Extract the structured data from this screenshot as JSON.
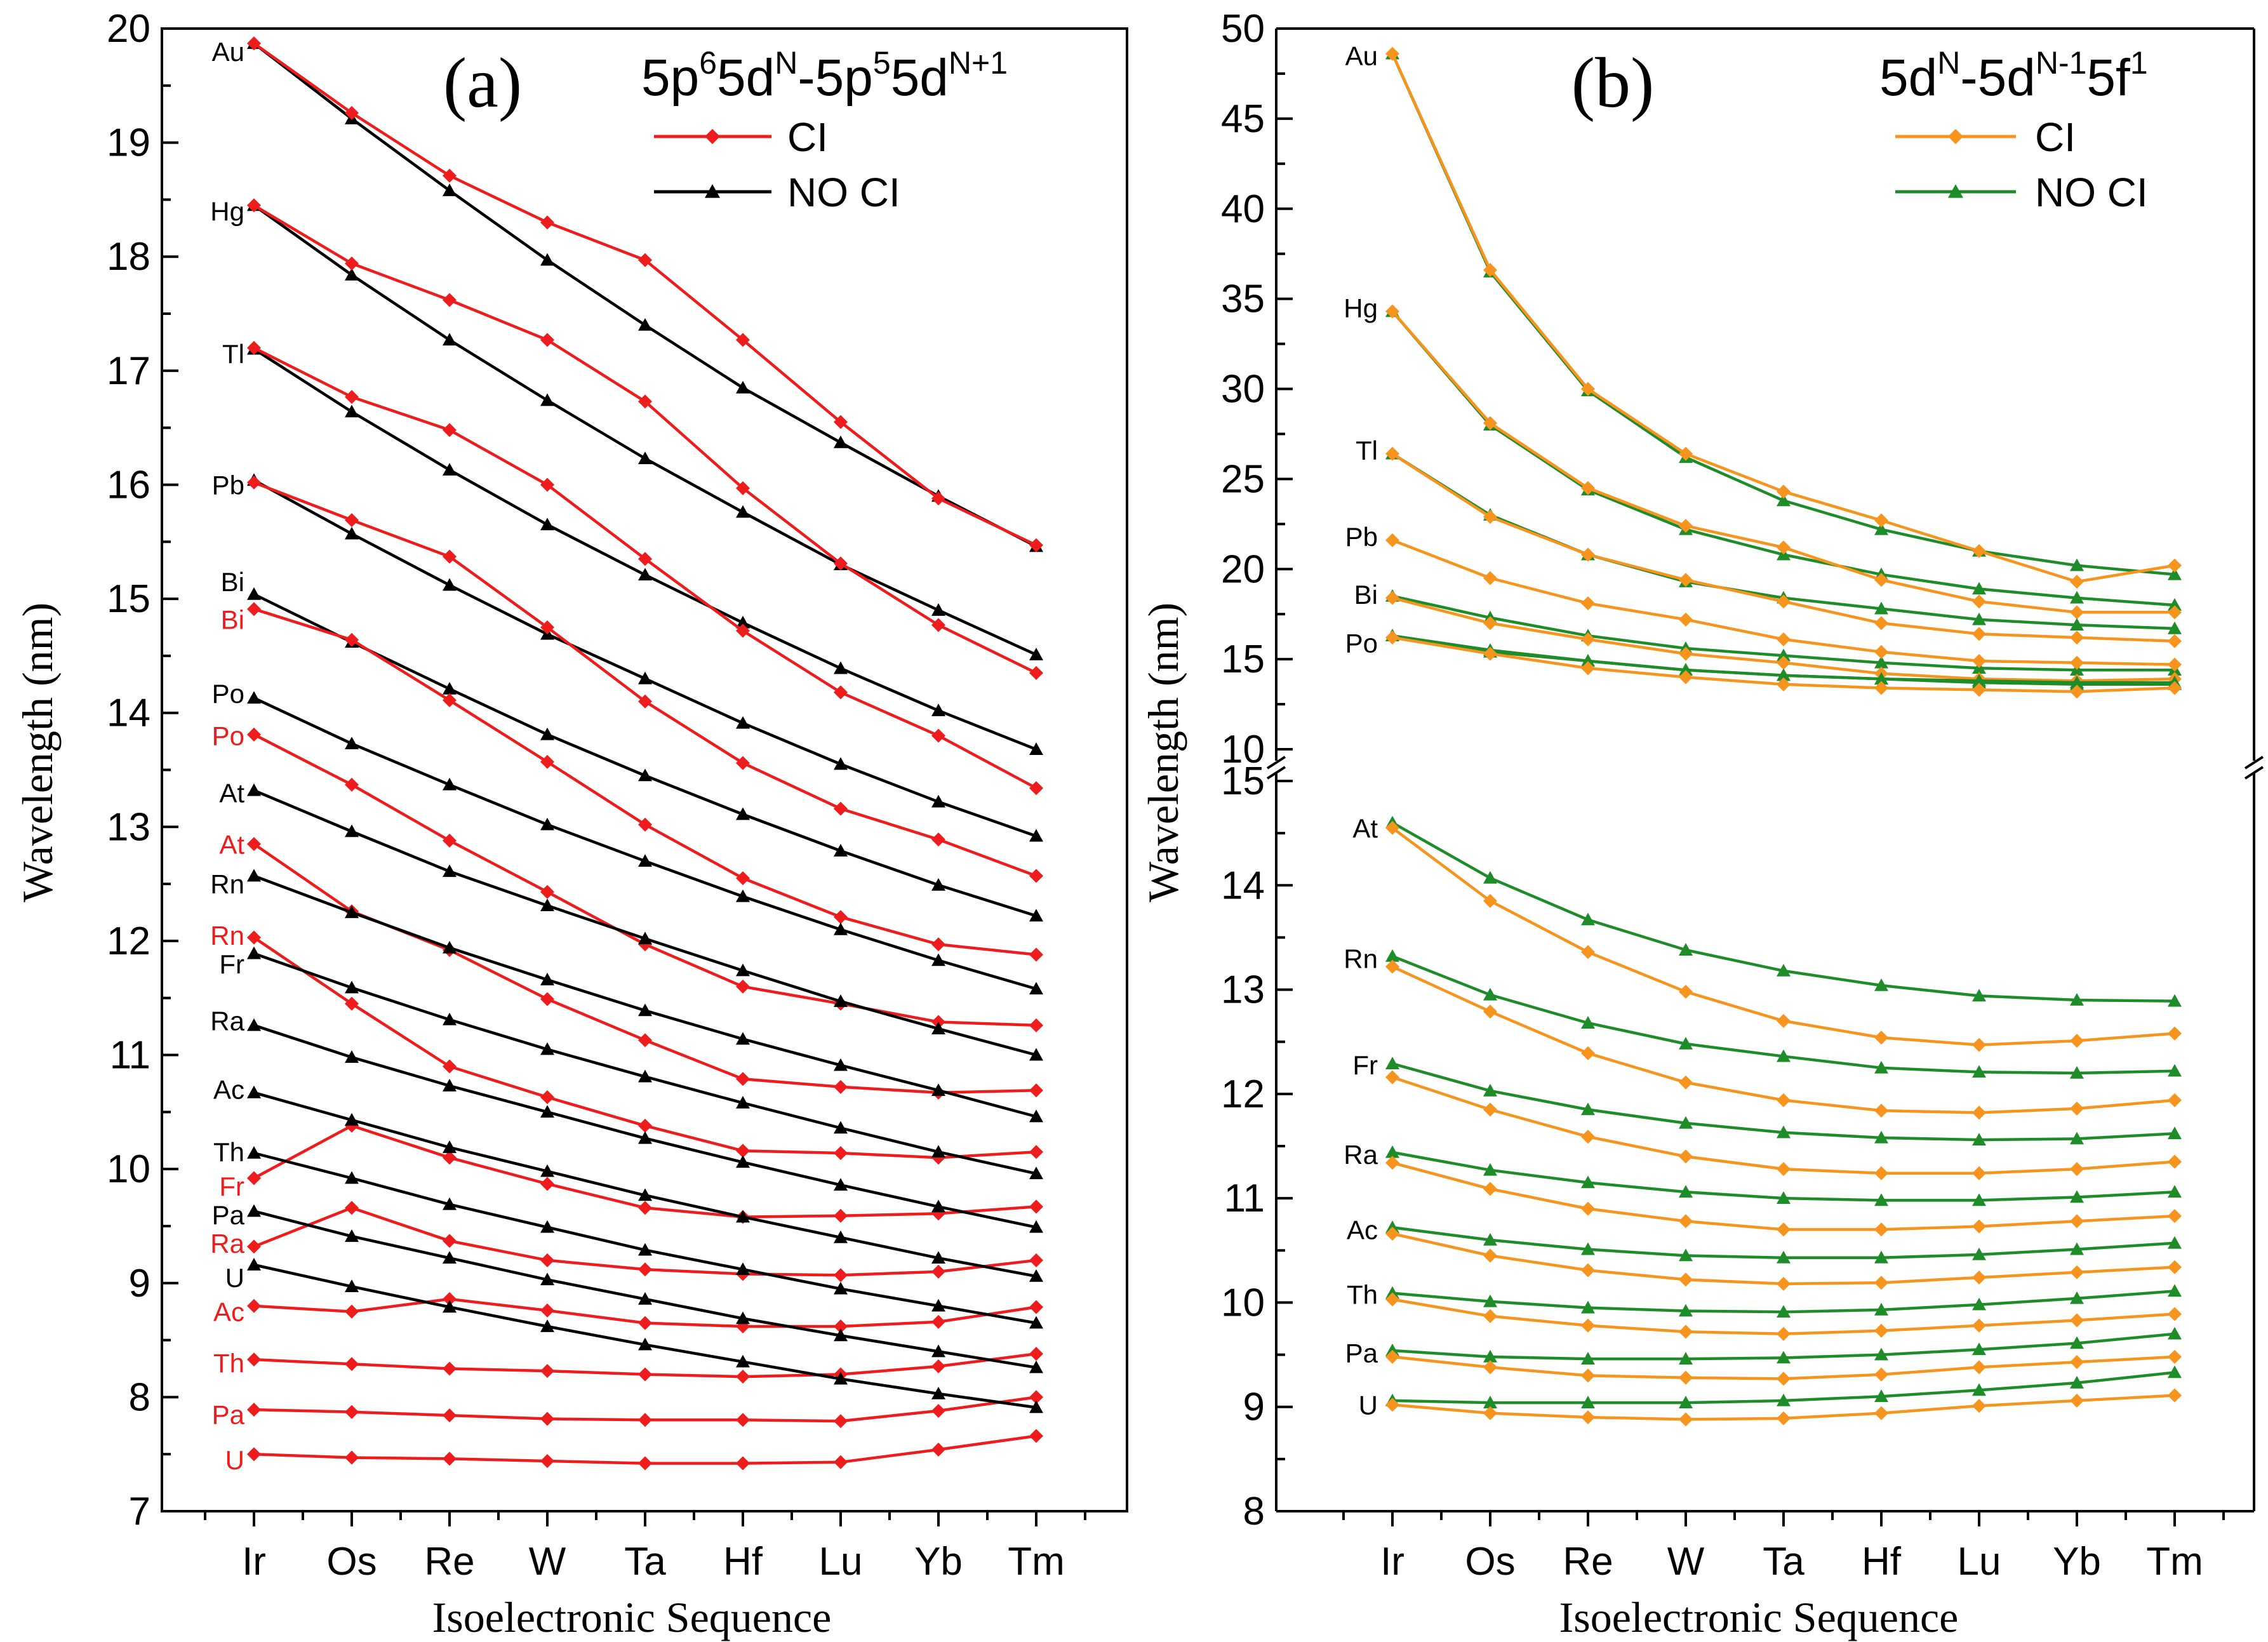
{
  "colors": {
    "ci_a": "#ee1c1c",
    "noci_a": "#000000",
    "ci_b": "#f7941d",
    "noci_b": "#1f8c2a",
    "label_red": "#ee1c1c",
    "label_black": "#000000"
  },
  "chart_data": [
    {
      "type": "line",
      "panel": "(a)",
      "transition_parts": [
        "5p",
        "6",
        "5d",
        "N",
        "-5p",
        "5",
        "5d",
        "N+1"
      ],
      "categories": [
        "Ir",
        "Os",
        "Re",
        "W",
        "Ta",
        "Hf",
        "Lu",
        "Yb",
        "Tm"
      ],
      "xlabel": "Isoelectronic Sequence",
      "ylabel": "Wavelength (nm)",
      "ylim": [
        7,
        20
      ],
      "yticks": [
        "7",
        "8",
        "9",
        "10",
        "11",
        "12",
        "13",
        "14",
        "15",
        "16",
        "17",
        "18",
        "19",
        "20"
      ],
      "legend": [
        "CI",
        "NO CI"
      ],
      "series": [
        {
          "element": "Au",
          "ci": [
            19.87,
            19.26,
            18.71,
            18.3,
            17.97,
            17.27,
            16.55,
            15.88,
            15.47
          ],
          "noci": [
            19.87,
            19.21,
            18.58,
            17.97,
            17.4,
            16.85,
            16.37,
            15.9,
            15.46
          ]
        },
        {
          "element": "Hg",
          "ci": [
            18.45,
            17.94,
            17.62,
            17.27,
            16.73,
            15.97,
            15.31,
            14.77,
            14.35
          ],
          "noci": [
            18.45,
            17.84,
            17.27,
            16.74,
            16.23,
            15.76,
            15.3,
            14.9,
            14.51
          ]
        },
        {
          "element": "Tl",
          "ci": [
            17.2,
            16.77,
            16.48,
            16.0,
            15.35,
            14.72,
            14.18,
            13.8,
            13.34
          ],
          "noci": [
            17.19,
            16.64,
            16.13,
            15.65,
            15.21,
            14.79,
            14.39,
            14.02,
            13.68
          ]
        },
        {
          "element": "Pb",
          "ci": [
            16.02,
            15.69,
            15.37,
            14.75,
            14.1,
            13.56,
            13.16,
            12.89,
            12.57
          ],
          "noci": [
            16.04,
            15.57,
            15.12,
            14.69,
            14.3,
            13.91,
            13.55,
            13.22,
            12.92
          ]
        },
        {
          "element": "Bi",
          "ci": [
            14.91,
            14.64,
            14.11,
            13.57,
            13.02,
            12.55,
            12.21,
            11.97,
            11.88
          ],
          "noci": [
            15.04,
            14.62,
            14.21,
            13.81,
            13.45,
            13.11,
            12.79,
            12.49,
            12.22
          ]
        },
        {
          "element": "Po",
          "ci": [
            13.81,
            13.37,
            12.88,
            12.43,
            11.97,
            11.6,
            11.45,
            11.29,
            11.26
          ],
          "noci": [
            14.13,
            13.73,
            13.37,
            13.02,
            12.7,
            12.39,
            12.1,
            11.83,
            11.58
          ]
        },
        {
          "element": "At",
          "ci": [
            12.85,
            12.26,
            11.92,
            11.49,
            11.13,
            10.79,
            10.72,
            10.67,
            10.69
          ],
          "noci": [
            13.32,
            12.96,
            12.61,
            12.31,
            12.02,
            11.74,
            11.47,
            11.23,
            11.0
          ]
        },
        {
          "element": "Rn",
          "ci": [
            12.03,
            11.45,
            10.9,
            10.63,
            10.38,
            10.16,
            10.14,
            10.1,
            10.15
          ],
          "noci": [
            12.57,
            12.25,
            11.94,
            11.66,
            11.39,
            11.14,
            10.91,
            10.69,
            10.46
          ]
        },
        {
          "element": "Fr",
          "ci": [
            9.92,
            10.38,
            10.1,
            9.87,
            9.66,
            9.58,
            9.59,
            9.61,
            9.67
          ],
          "noci": [
            11.89,
            11.59,
            11.31,
            11.05,
            10.81,
            10.58,
            10.36,
            10.15,
            9.96
          ]
        },
        {
          "element": "Ra",
          "ci": [
            9.32,
            9.66,
            9.37,
            9.2,
            9.12,
            9.08,
            9.07,
            9.1,
            9.2
          ],
          "noci": [
            11.26,
            10.98,
            10.73,
            10.5,
            10.27,
            10.06,
            9.86,
            9.67,
            9.49
          ]
        },
        {
          "element": "Ac",
          "ci": [
            8.8,
            8.75,
            8.86,
            8.76,
            8.65,
            8.62,
            8.62,
            8.66,
            8.79
          ],
          "noci": [
            10.67,
            10.43,
            10.19,
            9.98,
            9.77,
            9.58,
            9.4,
            9.22,
            9.06
          ]
        },
        {
          "element": "Th",
          "ci": [
            8.33,
            8.29,
            8.25,
            8.23,
            8.2,
            8.18,
            8.2,
            8.27,
            8.38
          ],
          "noci": [
            10.14,
            9.92,
            9.69,
            9.49,
            9.29,
            9.12,
            8.95,
            8.8,
            8.65
          ]
        },
        {
          "element": "Pa",
          "ci": [
            7.89,
            7.87,
            7.84,
            7.81,
            7.8,
            7.8,
            7.79,
            7.88,
            8.0
          ],
          "noci": [
            9.63,
            9.41,
            9.22,
            9.03,
            8.86,
            8.69,
            8.54,
            8.4,
            8.26
          ]
        },
        {
          "element": "U",
          "ci": [
            7.5,
            7.47,
            7.46,
            7.44,
            7.42,
            7.42,
            7.43,
            7.54,
            7.66
          ],
          "noci": [
            9.16,
            8.97,
            8.79,
            8.62,
            8.46,
            8.31,
            8.16,
            8.03,
            7.91
          ]
        }
      ],
      "labels": [
        {
          "text": "Au",
          "color": "black",
          "y": 19.8
        },
        {
          "text": "Hg",
          "color": "black",
          "y": 18.4
        },
        {
          "text": "Tl",
          "color": "black",
          "y": 17.15
        },
        {
          "text": "Pb",
          "color": "black",
          "y": 16.0
        },
        {
          "text": "Bi",
          "color": "black",
          "y": 15.15
        },
        {
          "text": "Bi",
          "color": "red",
          "y": 14.82
        },
        {
          "text": "Po",
          "color": "black",
          "y": 14.17
        },
        {
          "text": "Po",
          "color": "red",
          "y": 13.8
        },
        {
          "text": "At",
          "color": "black",
          "y": 13.3
        },
        {
          "text": "At",
          "color": "red",
          "y": 12.85
        },
        {
          "text": "Rn",
          "color": "black",
          "y": 12.5
        },
        {
          "text": "Rn",
          "color": "red",
          "y": 12.05
        },
        {
          "text": "Fr",
          "color": "black",
          "y": 11.8
        },
        {
          "text": "Ra",
          "color": "black",
          "y": 11.3
        },
        {
          "text": "Ac",
          "color": "black",
          "y": 10.7
        },
        {
          "text": "Th",
          "color": "black",
          "y": 10.15
        },
        {
          "text": "Fr",
          "color": "red",
          "y": 9.85
        },
        {
          "text": "Pa",
          "color": "black",
          "y": 9.6
        },
        {
          "text": "Ra",
          "color": "red",
          "y": 9.35
        },
        {
          "text": "U",
          "color": "black",
          "y": 9.05
        },
        {
          "text": "Ac",
          "color": "red",
          "y": 8.75
        },
        {
          "text": "Th",
          "color": "red",
          "y": 8.3
        },
        {
          "text": "Pa",
          "color": "red",
          "y": 7.85
        },
        {
          "text": "U",
          "color": "red",
          "y": 7.45
        }
      ]
    },
    {
      "type": "line",
      "panel": "(b)",
      "transition_parts": [
        "5d",
        "N",
        "-5d",
        "N-1",
        "5f",
        "1"
      ],
      "categories": [
        "Ir",
        "Os",
        "Re",
        "W",
        "Ta",
        "Hf",
        "Lu",
        "Yb",
        "Tm"
      ],
      "xlabel": "Isoelectronic Sequence",
      "ylabel": "Wavelength (nm)",
      "broken_axis": true,
      "ylim_upper": [
        10,
        50
      ],
      "yticks_upper": [
        "10",
        "15",
        "20",
        "25",
        "30",
        "35",
        "40",
        "45",
        "50"
      ],
      "ylim_lower": [
        8,
        15
      ],
      "yticks_lower": [
        "8",
        "9",
        "10",
        "11",
        "12",
        "13",
        "14",
        "15"
      ],
      "legend": [
        "CI",
        "NO CI"
      ],
      "series_upper": [
        {
          "element": "Au",
          "ci": [
            48.6,
            36.6,
            30.0,
            26.4,
            24.3,
            22.7,
            21.0,
            19.3,
            20.2
          ],
          "noci": [
            48.6,
            36.5,
            29.9,
            26.2,
            23.8,
            22.2,
            21.0,
            20.2,
            19.7
          ]
        },
        {
          "element": "Hg",
          "ci": [
            34.3,
            28.1,
            24.5,
            22.4,
            21.2,
            19.4,
            18.2,
            17.6,
            17.6
          ],
          "noci": [
            34.3,
            28.0,
            24.4,
            22.2,
            20.8,
            19.7,
            18.9,
            18.4,
            18.0
          ]
        },
        {
          "element": "Tl",
          "ci": [
            26.4,
            22.9,
            20.8,
            19.4,
            18.2,
            17.0,
            16.4,
            16.2,
            16.0
          ],
          "noci": [
            26.4,
            23.0,
            20.8,
            19.3,
            18.4,
            17.8,
            17.2,
            16.9,
            16.7
          ]
        },
        {
          "element": "Pb",
          "ci": [
            21.6,
            19.5,
            18.1,
            17.2,
            16.1,
            15.4,
            14.9,
            14.8,
            14.7
          ],
          "noci": [
            18.5,
            17.3,
            16.3,
            15.6,
            15.2,
            14.8,
            14.5,
            14.4,
            14.4
          ]
        },
        {
          "element": "Bi",
          "ci": [
            18.4,
            17.0,
            16.1,
            15.3,
            14.8,
            14.2,
            13.9,
            13.8,
            13.9
          ],
          "noci": [
            16.3,
            15.5,
            14.9,
            14.4,
            14.1,
            13.9,
            13.7,
            13.6,
            13.6
          ]
        },
        {
          "element": "Po",
          "ci": [
            16.2,
            15.3,
            14.5,
            14.0,
            13.6,
            13.4,
            13.3,
            13.2,
            13.4
          ],
          "noci": [
            16.3,
            15.4,
            14.9,
            14.4,
            14.1,
            13.9,
            13.8,
            13.7,
            13.7
          ]
        }
      ],
      "series_lower": [
        {
          "element": "At",
          "ci": [
            14.55,
            13.85,
            13.36,
            12.98,
            12.7,
            12.54,
            12.47,
            12.51,
            12.58
          ],
          "noci": [
            14.6,
            14.07,
            13.67,
            13.38,
            13.18,
            13.04,
            12.94,
            12.9,
            12.89
          ]
        },
        {
          "element": "Rn",
          "ci": [
            13.22,
            12.79,
            12.39,
            12.11,
            11.94,
            11.84,
            11.82,
            11.86,
            11.94
          ],
          "noci": [
            13.32,
            12.95,
            12.68,
            12.48,
            12.36,
            12.25,
            12.21,
            12.2,
            12.22
          ]
        },
        {
          "element": "Fr",
          "ci": [
            12.16,
            11.85,
            11.59,
            11.4,
            11.28,
            11.24,
            11.24,
            11.28,
            11.35
          ],
          "noci": [
            12.29,
            12.03,
            11.85,
            11.72,
            11.63,
            11.58,
            11.56,
            11.57,
            11.62
          ]
        },
        {
          "element": "Ra",
          "ci": [
            11.34,
            11.09,
            10.9,
            10.78,
            10.7,
            10.7,
            10.73,
            10.78,
            10.83
          ],
          "noci": [
            11.44,
            11.27,
            11.15,
            11.06,
            11.0,
            10.98,
            10.98,
            11.01,
            11.06
          ]
        },
        {
          "element": "Ac",
          "ci": [
            10.66,
            10.45,
            10.31,
            10.22,
            10.18,
            10.19,
            10.24,
            10.29,
            10.34
          ],
          "noci": [
            10.72,
            10.6,
            10.51,
            10.45,
            10.43,
            10.43,
            10.46,
            10.51,
            10.57
          ]
        },
        {
          "element": "Th",
          "ci": [
            10.03,
            9.87,
            9.78,
            9.72,
            9.7,
            9.73,
            9.78,
            9.83,
            9.89
          ],
          "noci": [
            10.09,
            10.01,
            9.95,
            9.92,
            9.91,
            9.93,
            9.98,
            10.04,
            10.11
          ]
        },
        {
          "element": "Pa",
          "ci": [
            9.48,
            9.38,
            9.3,
            9.28,
            9.27,
            9.31,
            9.38,
            9.43,
            9.48
          ],
          "noci": [
            9.54,
            9.48,
            9.46,
            9.46,
            9.47,
            9.5,
            9.55,
            9.61,
            9.7
          ]
        },
        {
          "element": "U",
          "ci": [
            9.02,
            8.94,
            8.9,
            8.88,
            8.89,
            8.94,
            9.01,
            9.06,
            9.11
          ],
          "noci": [
            9.06,
            9.04,
            9.04,
            9.04,
            9.06,
            9.1,
            9.16,
            9.23,
            9.33
          ]
        }
      ],
      "labels_upper": [
        {
          "text": "Au",
          "y": 48.5
        },
        {
          "text": "Hg",
          "y": 34.5
        },
        {
          "text": "Tl",
          "y": 26.6
        },
        {
          "text": "Pb",
          "y": 21.8
        },
        {
          "text": "Bi",
          "y": 18.6
        },
        {
          "text": "Po",
          "y": 15.9
        }
      ],
      "labels_lower": [
        {
          "text": "At",
          "y": 14.55
        },
        {
          "text": "Rn",
          "y": 13.3
        },
        {
          "text": "Fr",
          "y": 12.28
        },
        {
          "text": "Ra",
          "y": 11.42
        },
        {
          "text": "Ac",
          "y": 10.7
        },
        {
          "text": "Th",
          "y": 10.08
        },
        {
          "text": "Pa",
          "y": 9.52
        },
        {
          "text": "U",
          "y": 9.02
        }
      ]
    }
  ]
}
